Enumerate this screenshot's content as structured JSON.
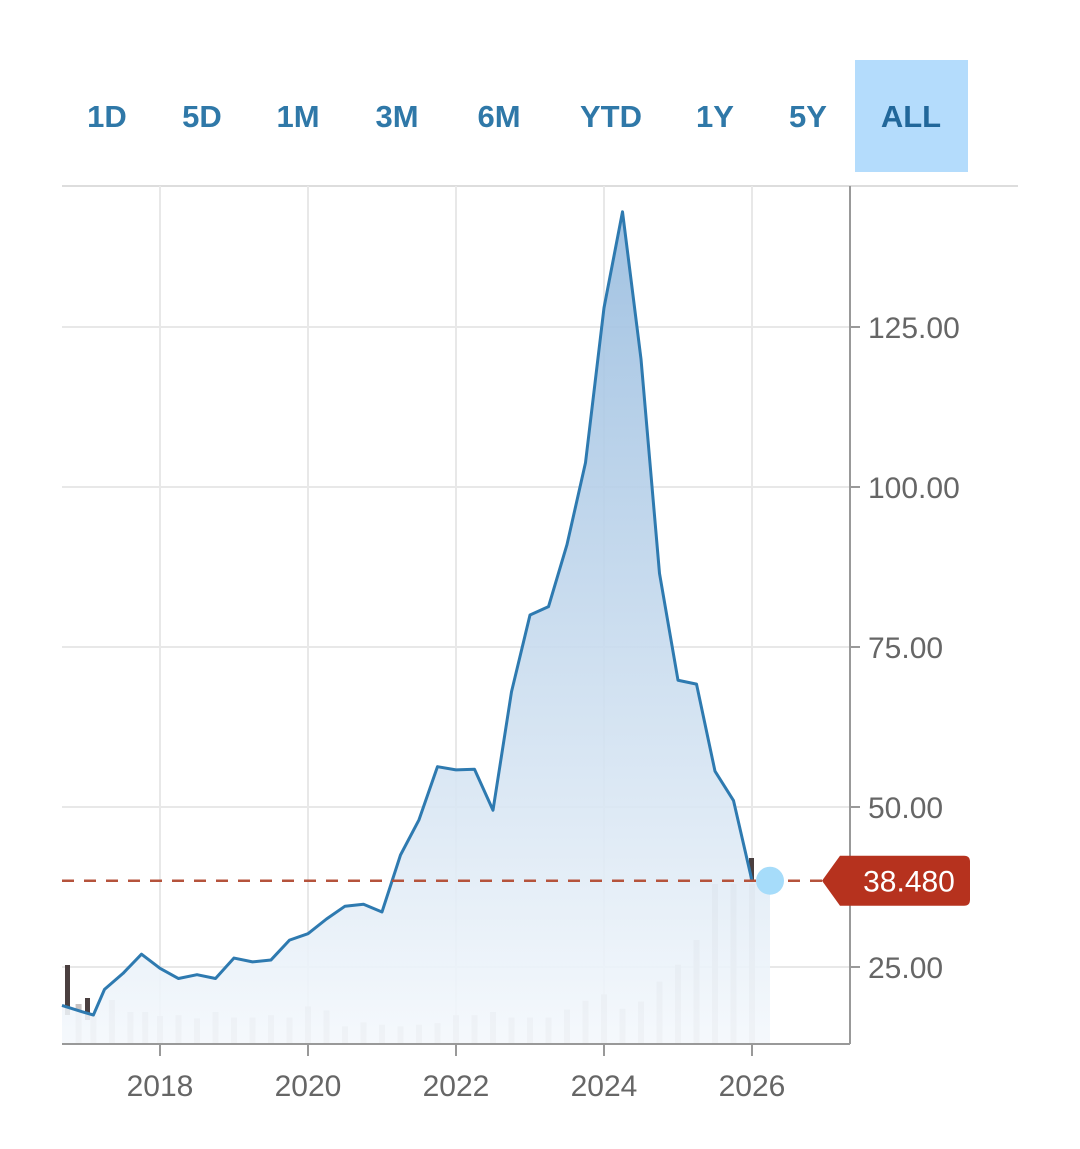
{
  "range_tabs": [
    {
      "label": "1D",
      "active": false
    },
    {
      "label": "5D",
      "active": false
    },
    {
      "label": "1M",
      "active": false
    },
    {
      "label": "3M",
      "active": false
    },
    {
      "label": "6M",
      "active": false
    },
    {
      "label": "YTD",
      "active": false
    },
    {
      "label": "1Y",
      "active": false
    },
    {
      "label": "5Y",
      "active": false
    },
    {
      "label": "ALL",
      "active": true
    }
  ],
  "colors": {
    "line": "#2e7ab0",
    "area_top": "#98bcdf",
    "area_bottom": "#f4f8fc",
    "last_price_line": "#b5533c",
    "last_price_badge": "#b6321e",
    "marker": "#a6dcfa",
    "volume_bar": "#c8c3c3",
    "volume_bar_dark": "#4a3f3f",
    "grid": "#e8e8e8",
    "axis": "#999999",
    "tick_text": "#666666"
  },
  "chart_data": {
    "type": "area",
    "title": "",
    "xlabel": "",
    "ylabel": "",
    "x_ticks": [
      2018,
      2020,
      2022,
      2024,
      2026
    ],
    "y_ticks": [
      25,
      50,
      75,
      100,
      125
    ],
    "y_tick_labels": [
      "25.00",
      "50.00",
      "75.00",
      "100.00",
      "125.00"
    ],
    "xlim": [
      2016.8,
      2027.2
    ],
    "ylim": [
      13,
      155
    ],
    "grid": true,
    "y_axis_side": "right",
    "last_price": 38.48,
    "last_price_label": "38.480",
    "series": [
      {
        "name": "",
        "x": [
          2016.8,
          2016.95,
          2017.1,
          2017.25,
          2017.5,
          2017.75,
          2018.0,
          2018.25,
          2018.5,
          2018.75,
          2019.0,
          2019.25,
          2019.5,
          2019.75,
          2020.0,
          2020.25,
          2020.5,
          2020.75,
          2021.0,
          2021.25,
          2021.5,
          2021.75,
          2022.0,
          2022.25,
          2022.5,
          2022.75,
          2023.0,
          2023.25,
          2023.5,
          2023.75,
          2024.0,
          2024.25,
          2024.5,
          2024.75,
          2025.0,
          2025.25,
          2025.5,
          2025.75,
          2026.0
        ],
        "y": [
          19,
          18,
          17.5,
          21.5,
          24,
          27,
          24.8,
          23.2,
          23.8,
          23.2,
          26.4,
          25.8,
          26.1,
          29.2,
          30.2,
          32.5,
          34.5,
          34.8,
          33.6,
          42.5,
          48,
          56.3,
          55.8,
          55.9,
          49.5,
          68,
          80,
          81.3,
          91,
          103.8,
          128,
          143,
          120,
          86.5,
          69.8,
          69.2,
          55.6,
          51,
          38.48
        ]
      }
    ],
    "volume": {
      "x": [
        2016.9,
        2017.1,
        2017.35,
        2017.6,
        2017.8,
        2018.0,
        2018.25,
        2018.5,
        2018.75,
        2019.0,
        2019.25,
        2019.5,
        2019.75,
        2020.0,
        2020.25,
        2020.5,
        2020.75,
        2021.0,
        2021.25,
        2021.5,
        2021.75,
        2022.0,
        2022.25,
        2022.5,
        2022.75,
        2023.0,
        2023.25,
        2023.5,
        2023.75,
        2024.0,
        2024.25,
        2024.5,
        2024.75,
        2025.0,
        2025.25,
        2025.5,
        2025.75,
        2026.0
      ],
      "height": [
        0.05,
        0.035,
        0.055,
        0.04,
        0.04,
        0.035,
        0.036,
        0.032,
        0.04,
        0.033,
        0.033,
        0.036,
        0.033,
        0.047,
        0.042,
        0.022,
        0.027,
        0.024,
        0.022,
        0.024,
        0.026,
        0.036,
        0.036,
        0.04,
        0.033,
        0.033,
        0.033,
        0.043,
        0.054,
        0.062,
        0.044,
        0.053,
        0.078,
        0.099,
        0.13,
        0.2,
        0.2,
        0.2
      ],
      "dark": [
        false,
        false,
        false,
        false,
        false,
        false,
        false,
        false,
        false,
        false,
        false,
        false,
        false,
        false,
        false,
        false,
        false,
        false,
        false,
        false,
        false,
        false,
        false,
        false,
        false,
        false,
        false,
        false,
        false,
        false,
        false,
        false,
        false,
        false,
        false,
        false,
        false,
        false
      ]
    }
  }
}
